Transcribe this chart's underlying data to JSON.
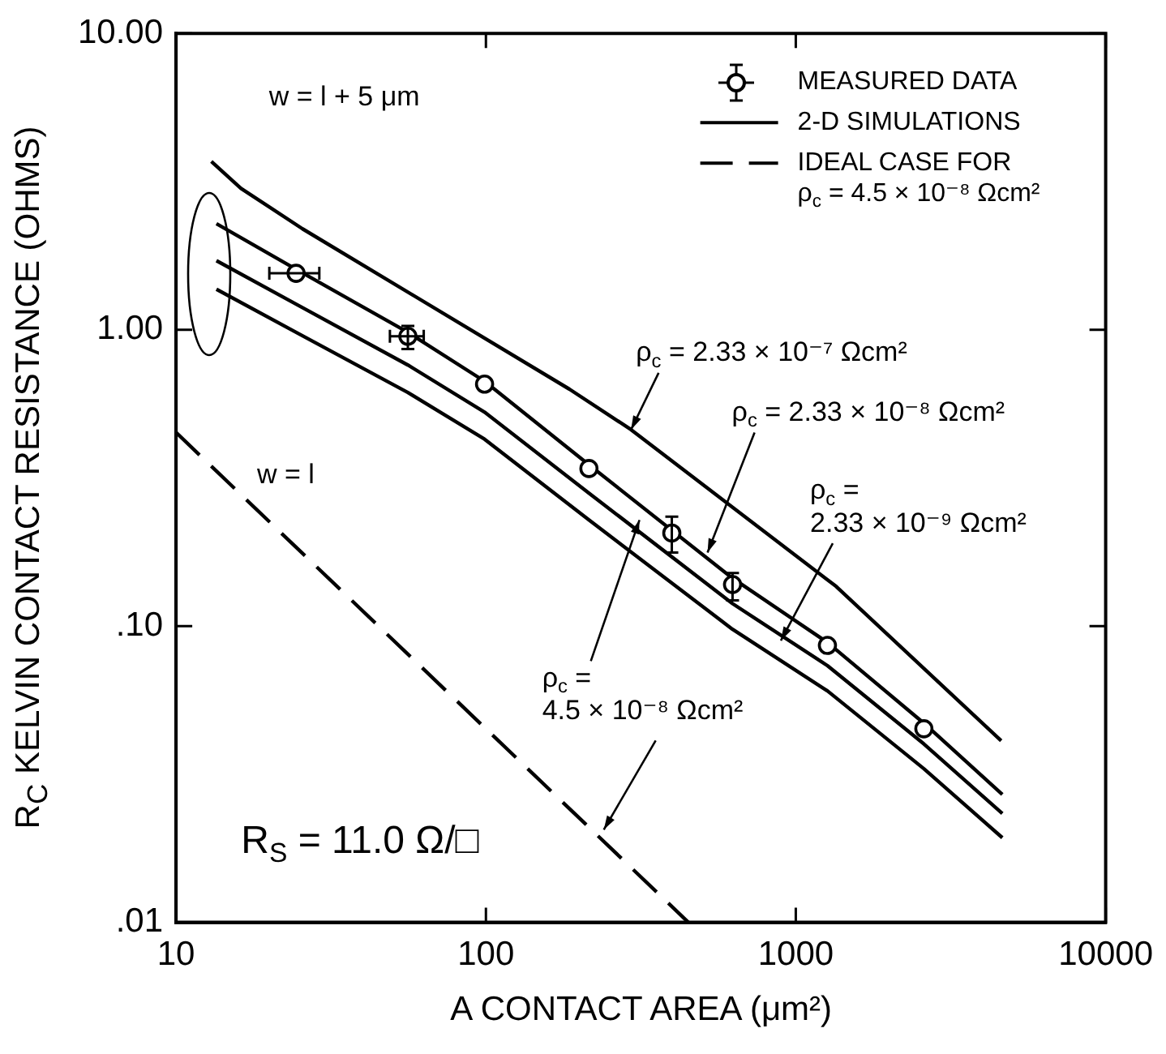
{
  "chart_data": {
    "type": "line",
    "log": "xy",
    "xlabel": "A CONTACT AREA (μm²)",
    "ylabel": "R$_{C}$ KELVIN CONTACT RESISTANCE (OHMS)",
    "xlim": [
      10,
      10000
    ],
    "ylim": [
      0.01,
      10
    ],
    "xticks": [
      10,
      100,
      1000,
      10000
    ],
    "yticks": [
      {
        "value": 0.01,
        "label": ".01"
      },
      {
        "value": 0.1,
        "label": ".10"
      },
      {
        "value": 1,
        "label": "1.00"
      },
      {
        "value": 10,
        "label": "10.00"
      }
    ],
    "grid": false,
    "legend": "top right",
    "series": [
      {
        "name": "MEASURED DATA",
        "type": "scatter",
        "marker": "circle",
        "color": "#000000",
        "x": [
          24.4,
          56,
          99,
          215,
          398,
          625,
          1265,
          2590
        ],
        "values": [
          1.55,
          0.95,
          0.655,
          0.34,
          0.206,
          0.138,
          0.086,
          0.045
        ],
        "errors": [
          null,
          [
            0.86,
            1.03
          ],
          null,
          null,
          [
            0.177,
            0.234
          ],
          [
            0.122,
            0.151
          ],
          null,
          null
        ],
        "xerrors": [
          [
            20,
            29
          ],
          [
            49,
            63
          ],
          null,
          null,
          null,
          null,
          null,
          null
        ]
      },
      {
        "name": "2-D SIMULATIONS",
        "color": "#000000",
        "x": [
          13,
          16.2,
          25.6,
          186,
          294,
          1350,
          4600
        ],
        "values": [
          3.7,
          3.0,
          2.19,
          0.63,
          0.46,
          0.136,
          0.041
        ]
      },
      {
        "color": "#000000",
        "x": [
          13.5,
          24.4,
          56,
          99,
          215,
          625,
          1265,
          2590,
          4640
        ],
        "values": [
          2.28,
          1.6,
          0.98,
          0.67,
          0.35,
          0.145,
          0.088,
          0.047,
          0.027
        ]
      },
      {
        "color": "#000000",
        "x": [
          13.5,
          24.4,
          56,
          99,
          215,
          625,
          1265,
          2590,
          4640
        ],
        "values": [
          1.71,
          1.22,
          0.76,
          0.527,
          0.281,
          0.119,
          0.0735,
          0.04,
          0.0233
        ]
      },
      {
        "color": "#000000",
        "x": [
          13.5,
          24.4,
          56,
          99,
          215,
          625,
          1265,
          2590,
          4640
        ],
        "values": [
          1.37,
          0.98,
          0.614,
          0.427,
          0.228,
          0.0975,
          0.0604,
          0.033,
          0.0193
        ]
      },
      {
        "name": "IDEAL CASE FOR\nρ$_{c}$ = 4.5 × 10⁻⁸ Ωcm²",
        "color": "#000000",
        "line_style": "dashed",
        "x": [
          10,
          450
        ],
        "values": [
          0.45,
          0.01
        ]
      }
    ],
    "annotations": [
      "w = l + 5 μm",
      {
        "text": "w = l",
        "x": 14,
        "y": 0.33
      },
      {
        "text": "ρ$_{c}$ = 2.33 × 10⁻⁷ Ωcm²",
        "x": 294,
        "y": 0.46
      },
      {
        "text": "ρ$_{c}$ = 2.33 × 10⁻⁸ Ωcm²",
        "x": 519,
        "y": 0.177
      },
      {
        "text": "ρ$_{c}$ =\n2.33 × 10⁻⁹ Ωcm²",
        "x": 895,
        "y": 0.0893
      },
      {
        "text": "ρ$_{c}$ =\n4.5 × 10⁻⁸ Ωcm²",
        "x": 313,
        "y": 0.228
      },
      "R$_{S}$ = 11.0 Ω/□"
    ]
  }
}
